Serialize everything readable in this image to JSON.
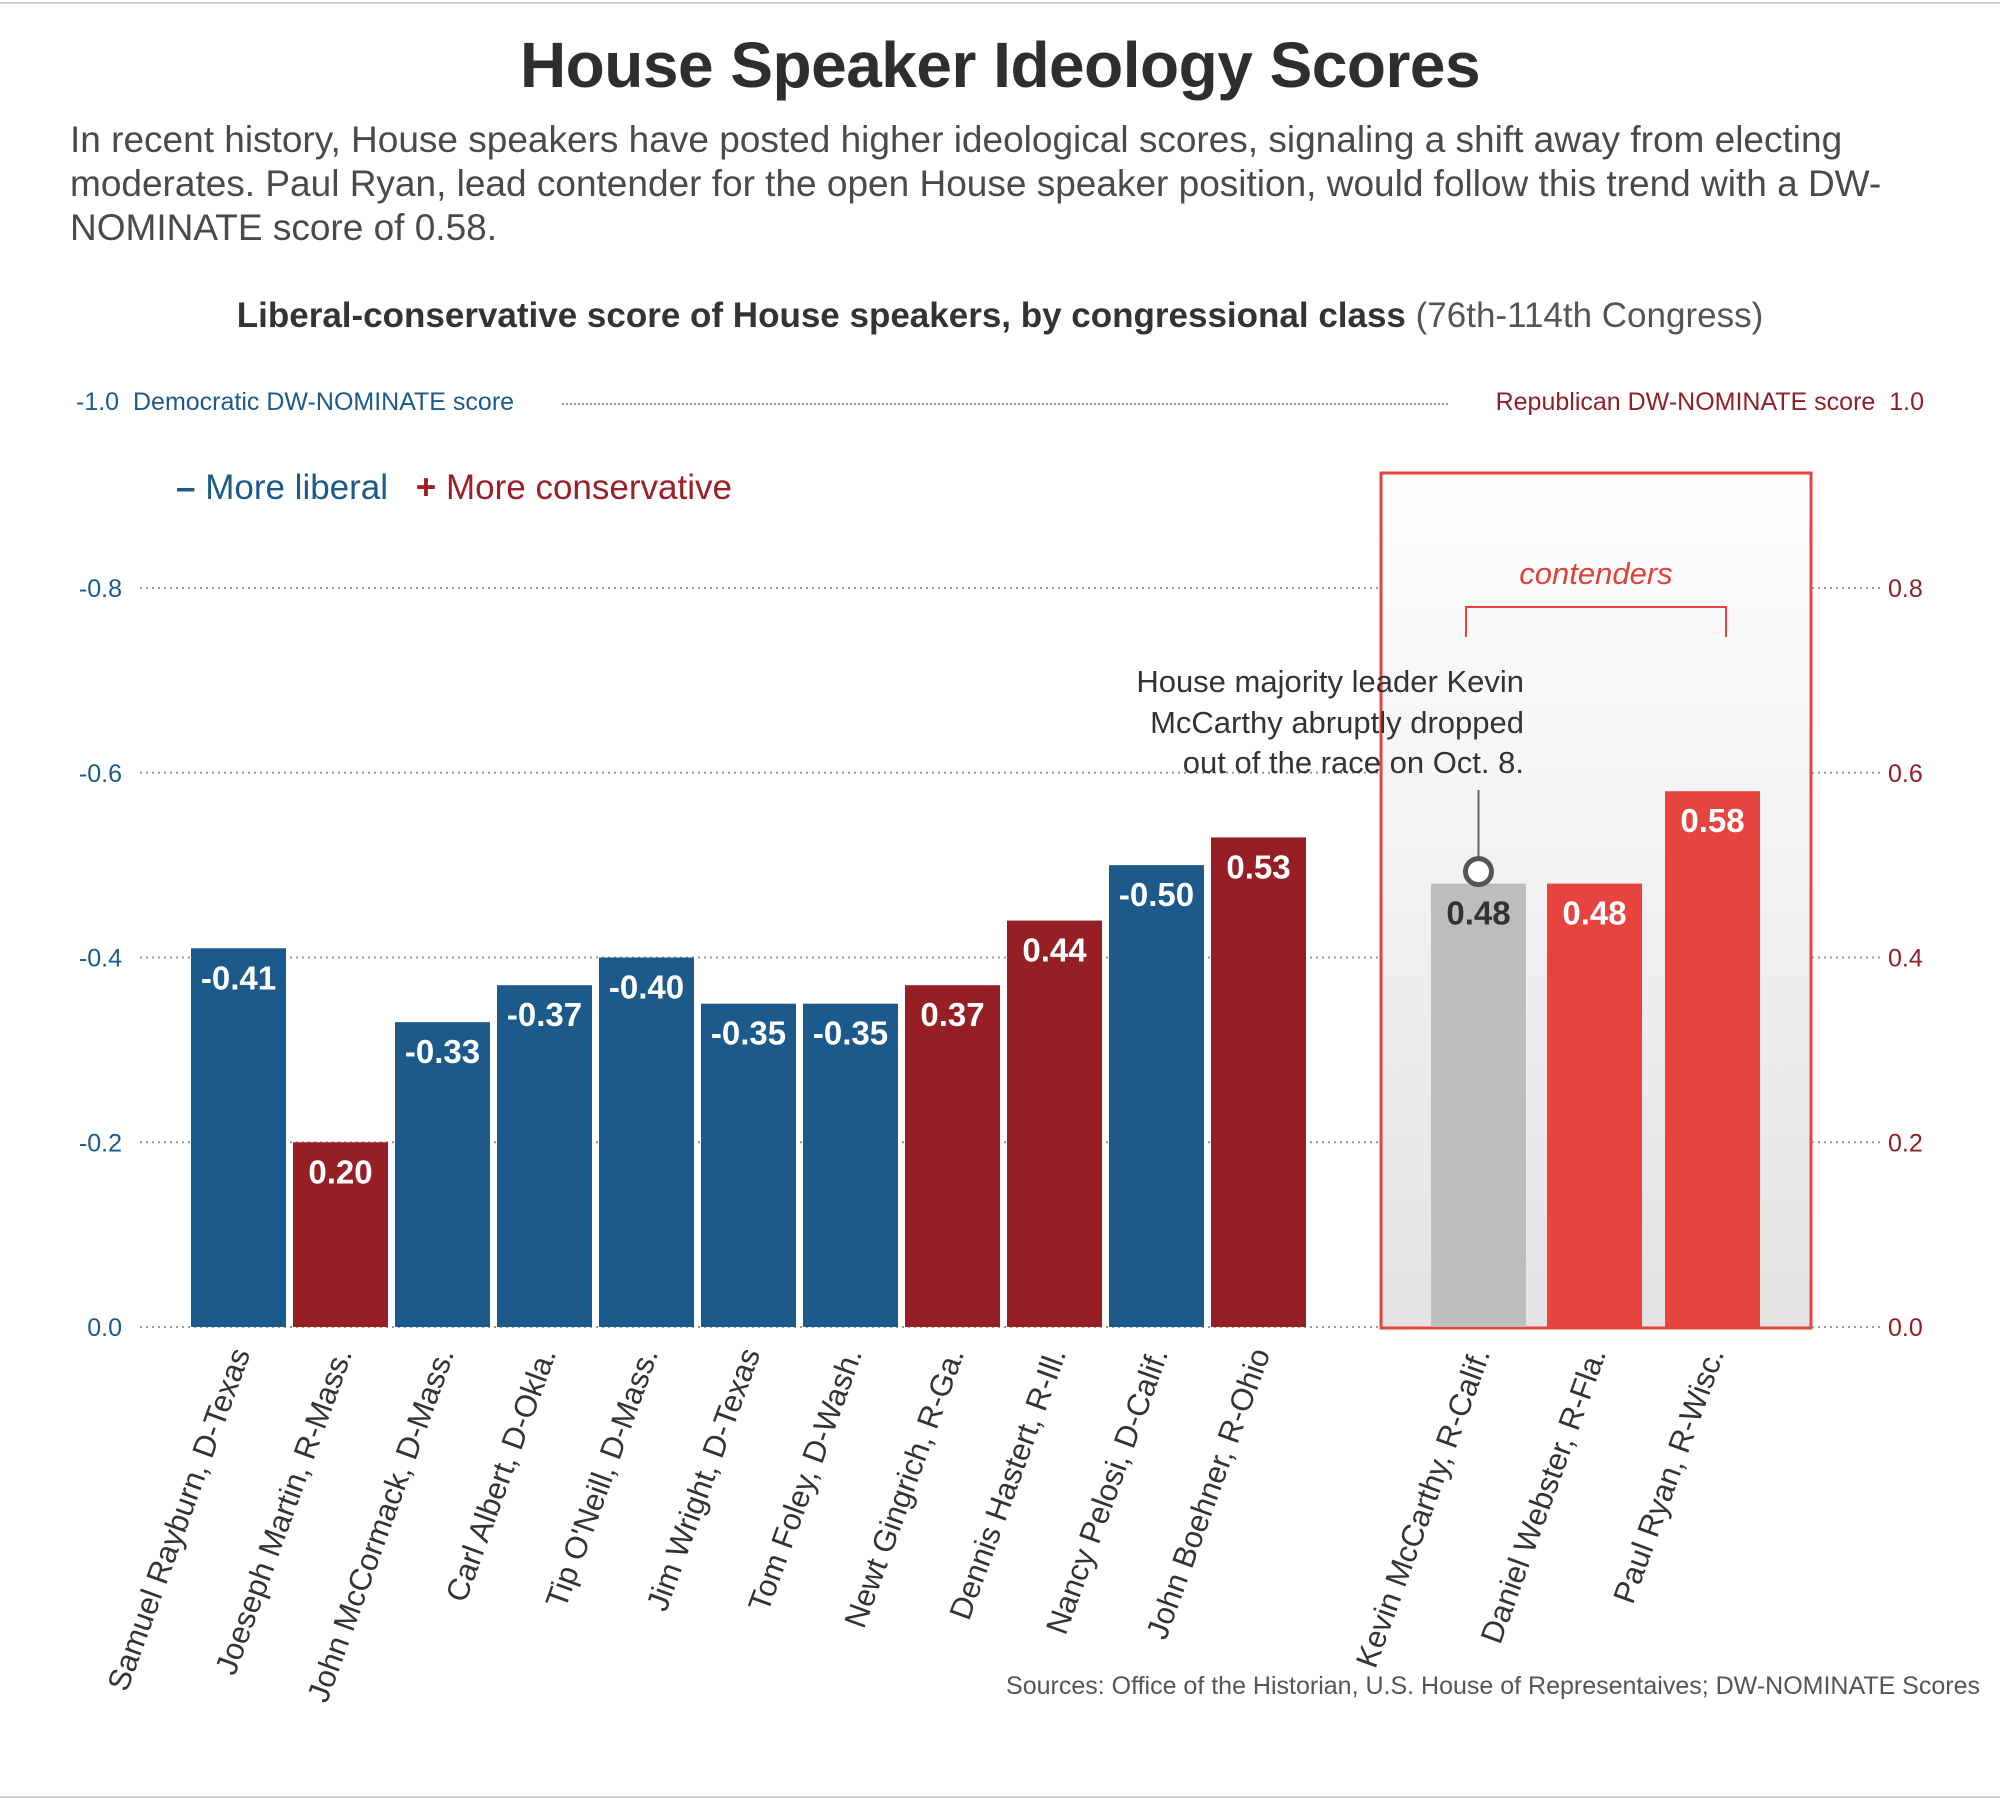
{
  "title": "House Speaker Ideology Scores",
  "subtitle": "In recent history, House speakers have posted higher ideological scores, signaling a shift away from electing moderates. Paul Ryan, lead contender for the open House speaker position, would follow this trend with a DW-NOMINATE score of 0.58.",
  "chart_heading_bold": "Liberal-conservative score of House speakers, by congressional class",
  "chart_heading_light": "(76th-114th Congress)",
  "scale": {
    "left_value": "-1.0",
    "left_label": "Democratic DW-NOMINATE score",
    "right_label": "Republican DW-NOMINATE score",
    "right_value": "1.0"
  },
  "legend": {
    "liberal_symbol": "–",
    "liberal_label": "More liberal",
    "conservative_symbol": "+",
    "conservative_label": "More conservative"
  },
  "contenders_label": "contenders",
  "annotation": [
    "House majority leader Kevin",
    "McCarthy abruptly dropped",
    "out of the race on Oct. 8."
  ],
  "sources": "Sources: Office of the Historian, U.S. House of Representaives; DW-NOMINATE Scores",
  "colors": {
    "democrat": "#1b5a8a",
    "republican": "#961f26",
    "contender_red": "#e8443f",
    "contender_gray": "#bdbdbd",
    "axis_left": "#1b5a8a",
    "axis_right": "#8f1f26"
  },
  "chart_data": {
    "type": "bar",
    "ylim": [
      0,
      1.0
    ],
    "yticks_left": [
      "-0.8",
      "-0.6",
      "-0.4",
      "-0.2",
      "0.0"
    ],
    "yticks_right": [
      "0.8",
      "0.6",
      "0.4",
      "0.2",
      "0.0"
    ],
    "ytick_values": [
      0.8,
      0.6,
      0.4,
      0.2,
      0.0
    ],
    "grid": true,
    "bars": [
      {
        "category": "Samuel Rayburn, D-Texas",
        "value": -0.41,
        "label": "-0.41",
        "party": "democrat"
      },
      {
        "category": "Joeseph Martin, R-Mass.",
        "value": 0.2,
        "label": "0.20",
        "party": "republican"
      },
      {
        "category": "John McCormack, D-Mass.",
        "value": -0.33,
        "label": "-0.33",
        "party": "democrat"
      },
      {
        "category": "Carl Albert, D-Okla.",
        "value": -0.37,
        "label": "-0.37",
        "party": "democrat"
      },
      {
        "category": "Tip O'Neill, D-Mass.",
        "value": -0.4,
        "label": "-0.40",
        "party": "democrat"
      },
      {
        "category": "Jim Wright, D-Texas",
        "value": -0.35,
        "label": "-0.35",
        "party": "democrat"
      },
      {
        "category": "Tom Foley, D-Wash.",
        "value": -0.35,
        "label": "-0.35",
        "party": "democrat"
      },
      {
        "category": "Newt Gingrich, R-Ga.",
        "value": 0.37,
        "label": "0.37",
        "party": "republican"
      },
      {
        "category": "Dennis Hastert, R-Ill.",
        "value": 0.44,
        "label": "0.44",
        "party": "republican"
      },
      {
        "category": "Nancy Pelosi, D-Calif.",
        "value": -0.5,
        "label": "-0.50",
        "party": "democrat"
      },
      {
        "category": "John Boehner, R-Ohio",
        "value": 0.53,
        "label": "0.53",
        "party": "republican"
      }
    ],
    "contenders": [
      {
        "category": "Kevin McCarthy, R-Calif.",
        "value": 0.48,
        "label": "0.48",
        "status": "dropped"
      },
      {
        "category": "Daniel Webster, R-Fla.",
        "value": 0.48,
        "label": "0.48",
        "status": "active"
      },
      {
        "category": "Paul Ryan, R-Wisc.",
        "value": 0.58,
        "label": "0.58",
        "status": "active"
      }
    ]
  }
}
